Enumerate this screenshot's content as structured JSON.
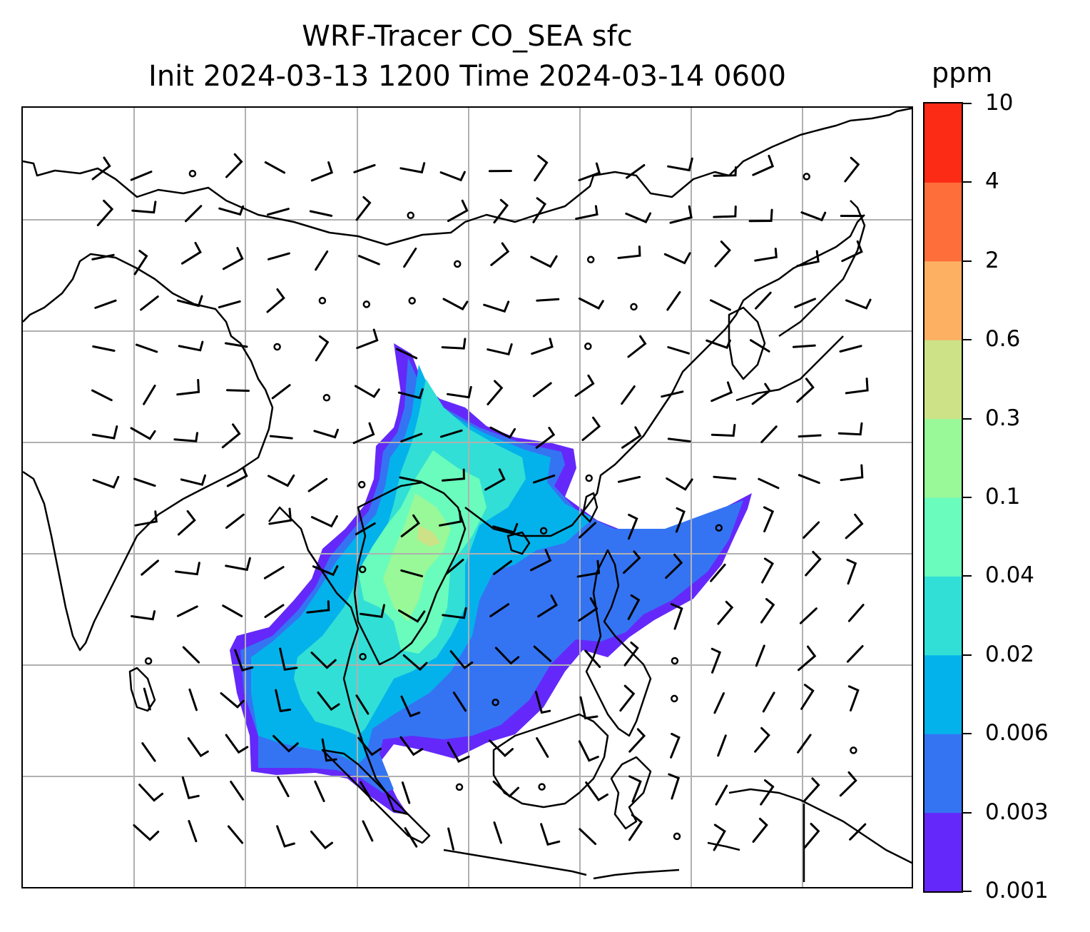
{
  "title": {
    "line1": "WRF-Tracer CO_SEA sfc",
    "line2": "Init 2024-03-13 1200 Time 2024-03-14 0600"
  },
  "colorbar": {
    "unit": "ppm",
    "levels": [
      "0.001",
      "0.003",
      "0.006",
      "0.02",
      "0.04",
      "0.1",
      "0.3",
      "0.6",
      "2",
      "4",
      "10"
    ],
    "colors": [
      "#6429fa",
      "#3474f3",
      "#04b2eb",
      "#31dfd6",
      "#6afcbc",
      "#99f898",
      "#cde287",
      "#fdb062",
      "#fe6e3a",
      "#fc2b15"
    ]
  },
  "map": {
    "gridline_color": "#b0b0b0",
    "coastline_color": "#000000",
    "wind_barb_color": "#000000"
  }
}
